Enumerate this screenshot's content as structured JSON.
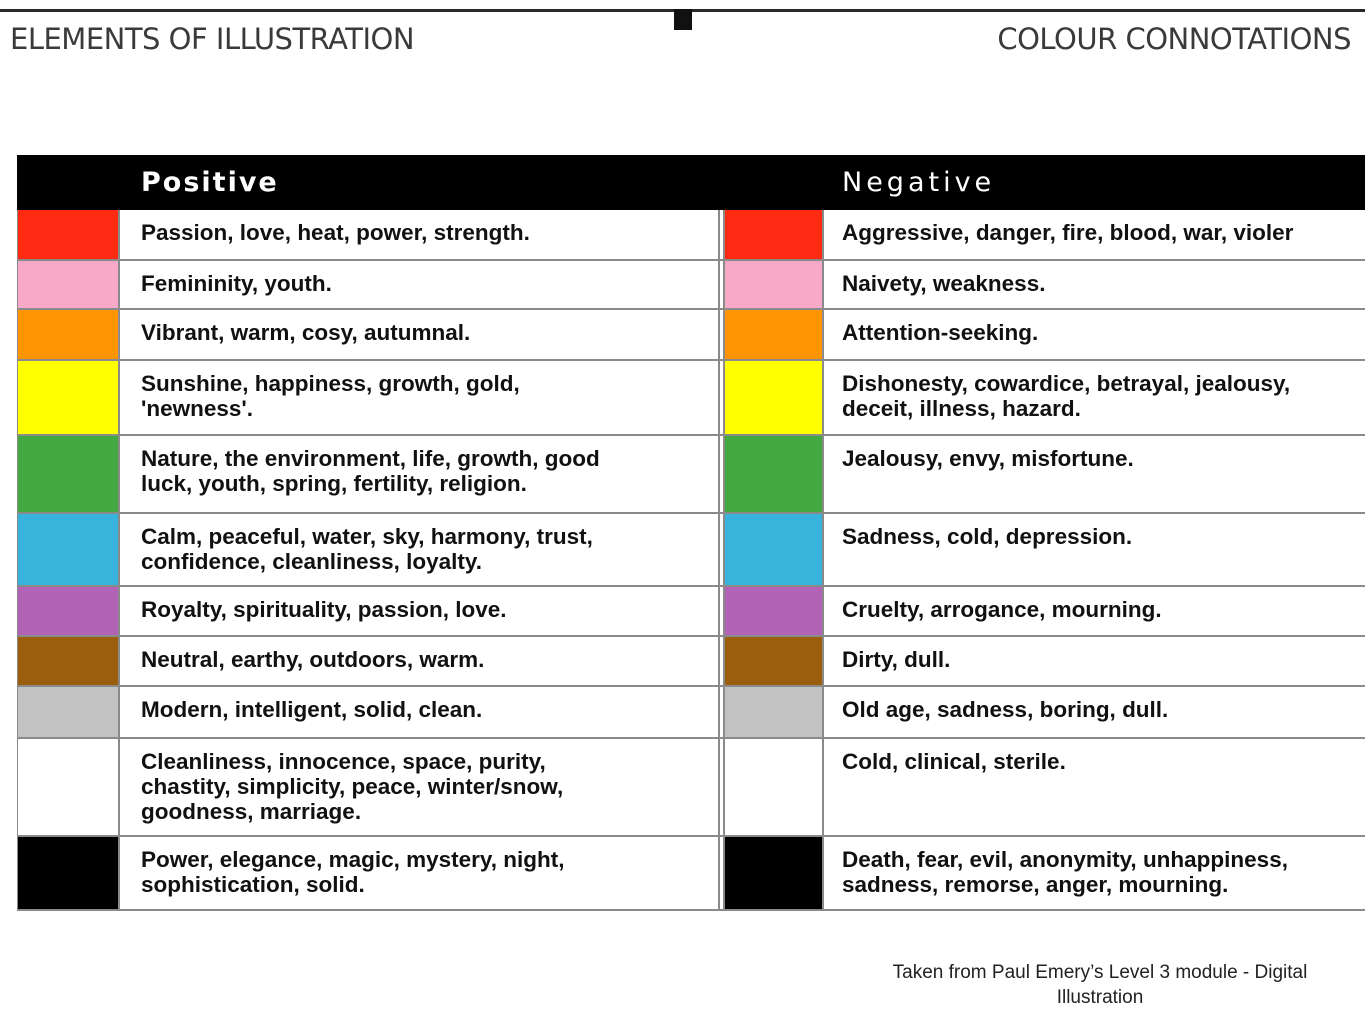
{
  "header": {
    "left_title": "ELEMENTS OF ILLUSTRATION",
    "right_title": "COLOUR CONNOTATIONS"
  },
  "table": {
    "positive_heading": "Positive",
    "negative_heading": "Negative",
    "rows": [
      {
        "color": "#ff2a12",
        "positive": "Passion, love, heat, power, strength.",
        "negative": "Aggressive, danger, fire, blood, war, violer"
      },
      {
        "color": "#f9a9c8",
        "positive": "Femininity, youth.",
        "negative": "Naivety, weakness."
      },
      {
        "color": "#ff9505",
        "positive": "Vibrant, warm, cosy, autumnal.",
        "negative": "Attention-seeking."
      },
      {
        "color": "#ffff00",
        "positive": "Sunshine, happiness, growth, gold,\n'newness'.",
        "negative": "Dishonesty, cowardice, betrayal, jealousy,\ndeceit, illness, hazard."
      },
      {
        "color": "#44a840",
        "positive": "Nature, the environment, life, growth, good\nluck, youth, spring, fertility, religion.",
        "negative": "Jealousy, envy, misfortune."
      },
      {
        "color": "#38b4dc",
        "positive": "Calm, peaceful, water, sky, harmony, trust,\nconfidence, cleanliness, loyalty.",
        "negative": "Sadness, cold, depression."
      },
      {
        "color": "#b363b6",
        "positive": "Royalty, spirituality, passion, love.",
        "negative": "Cruelty, arrogance, mourning."
      },
      {
        "color": "#9a5e0c",
        "positive": "Neutral, earthy, outdoors, warm.",
        "negative": "Dirty, dull."
      },
      {
        "color": "#c2c2c2",
        "positive": "Modern, intelligent, solid, clean.",
        "negative": "Old age, sadness, boring, dull."
      },
      {
        "color": "#ffffff",
        "positive": "Cleanliness, innocence, space, purity,\nchastity, simplicity,  peace, winter/snow,\ngoodness, marriage.",
        "negative": "Cold, clinical, sterile."
      },
      {
        "color": "#000000",
        "positive": "Power, elegance, magic, mystery, night,\nsophistication, solid.",
        "negative": "Death, fear, evil, anonymity, unhappiness,\nsadness, remorse, anger, mourning."
      }
    ]
  },
  "footnote": "Taken from Paul Emery’s Level 3 module - Digital Illustration"
}
